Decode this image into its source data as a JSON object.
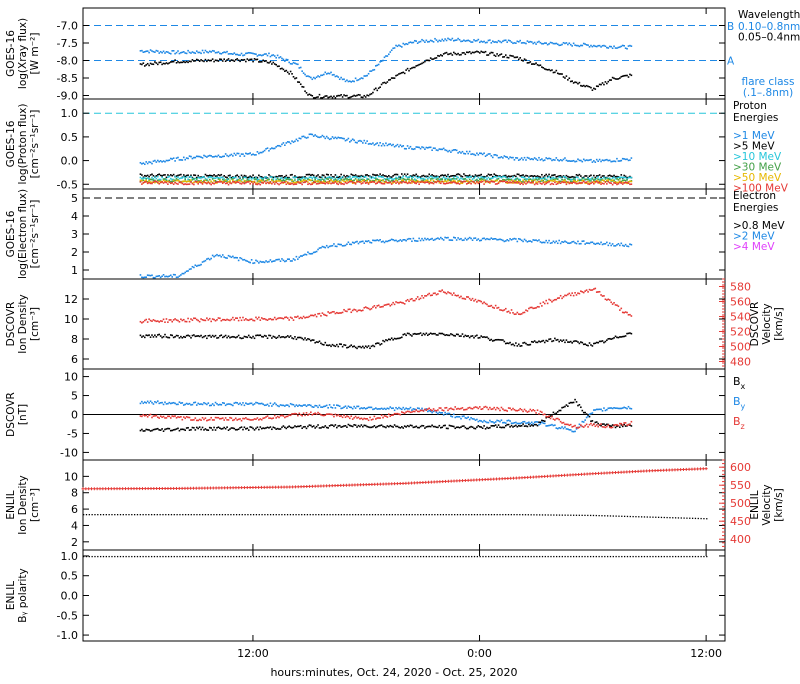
{
  "figure": {
    "xlabel": "hours:minutes, Oct. 24, 2020 - Oct. 25, 2020",
    "x_tick_labels": [
      "12:00",
      "0:00",
      "12:00"
    ]
  },
  "chart_data": [
    {
      "type": "scatter",
      "id": "xray",
      "ylabel_lines": [
        "GOES-16",
        "log(Xray flux)",
        "[W m⁻²]"
      ],
      "ylim": [
        -9.1,
        -6.5
      ],
      "y_ticks": [
        -7.0,
        -7.5,
        -8.0,
        -8.5,
        -9.0
      ],
      "y_tick_labels": [
        "-7.0",
        "-7.5",
        "-8.0",
        "-8.5",
        "-9.0"
      ],
      "legend_title": "Wavelength",
      "legend": [
        {
          "label": "0.10–0.8nm",
          "color": "#1e88e5",
          "side_label": "B"
        },
        {
          "label": "0.05–0.4nm",
          "color": "#000000"
        }
      ],
      "side_label_A": "A",
      "note_lines": [
        "flare class",
        "(.1–.8nm)"
      ],
      "note_color": "#1e88e5",
      "reference_lines": [
        {
          "y": -7.0,
          "color": "#1e88e5"
        },
        {
          "y": -8.0,
          "color": "#1e88e5"
        }
      ],
      "series": [
        {
          "name": "0.10–0.8nm",
          "color": "#1e88e5",
          "x": [
            6,
            8,
            10,
            11,
            12,
            13,
            14.3,
            15,
            16,
            17,
            18,
            18.8,
            19.5,
            20.5,
            21.5,
            22.5,
            24,
            26,
            28,
            30,
            31,
            32
          ],
          "y": [
            -7.7,
            -7.75,
            -7.72,
            -7.8,
            -7.8,
            -7.82,
            -8.1,
            -8.5,
            -8.3,
            -8.6,
            -8.4,
            -8.0,
            -7.6,
            -7.45,
            -7.4,
            -7.38,
            -7.42,
            -7.45,
            -7.5,
            -7.55,
            -7.58,
            -7.6
          ]
        },
        {
          "name": "0.05–0.4nm",
          "color": "#000000",
          "x": [
            6,
            8,
            10,
            11,
            12,
            13,
            14,
            15,
            17,
            18,
            19,
            20,
            21,
            22,
            24,
            26,
            28,
            29,
            30,
            31,
            32
          ],
          "y": [
            -8.1,
            -8.0,
            -7.97,
            -7.95,
            -7.97,
            -8.05,
            -8.35,
            -9.0,
            -9.0,
            -9.0,
            -8.6,
            -8.3,
            -8.0,
            -7.8,
            -7.75,
            -7.9,
            -8.3,
            -8.6,
            -8.8,
            -8.5,
            -8.4
          ]
        }
      ]
    },
    {
      "type": "scatter",
      "id": "proton",
      "ylabel_lines": [
        "GOES-16",
        "log(Proton flux)",
        "[cm⁻²s⁻¹sr⁻¹]"
      ],
      "ylim": [
        -0.6,
        1.3
      ],
      "y_ticks": [
        1.0,
        0.5,
        0.0,
        -0.5
      ],
      "y_tick_labels": [
        "1.0",
        "0.5",
        "0.0",
        "-0.5"
      ],
      "legend_title_lines": [
        "Proton",
        "Energies"
      ],
      "legend": [
        {
          "label": ">1 MeV",
          "color": "#1e88e5"
        },
        {
          "label": ">5 MeV",
          "color": "#000000"
        },
        {
          "label": ">10 MeV",
          "color": "#26c6da"
        },
        {
          "label": ">30 MeV",
          "color": "#43a047"
        },
        {
          "label": ">50 MeV",
          "color": "#e6b800"
        },
        {
          "label": ">100 MeV",
          "color": "#e53935"
        }
      ],
      "reference_lines": [
        {
          "y": 1.0,
          "color": "#26c6da"
        }
      ],
      "series": [
        {
          "name": ">1 MeV",
          "color": "#1e88e5",
          "x": [
            6,
            9,
            12,
            15,
            18,
            20,
            22,
            24,
            26,
            28,
            30,
            32
          ],
          "y": [
            -0.05,
            0.1,
            0.15,
            0.55,
            0.4,
            0.3,
            0.25,
            0.15,
            0.05,
            0.05,
            0.0,
            0.05
          ]
        },
        {
          "name": ">5 MeV",
          "color": "#000000",
          "x": [
            6,
            12,
            18,
            24,
            32
          ],
          "y": [
            -0.3,
            -0.32,
            -0.3,
            -0.3,
            -0.32
          ]
        },
        {
          "name": ">10 MeV",
          "color": "#26c6da",
          "x": [
            6,
            12,
            18,
            24,
            32
          ],
          "y": [
            -0.35,
            -0.36,
            -0.35,
            -0.35,
            -0.36
          ]
        },
        {
          "name": ">30 MeV",
          "color": "#43a047",
          "x": [
            6,
            12,
            18,
            24,
            32
          ],
          "y": [
            -0.4,
            -0.4,
            -0.4,
            -0.4,
            -0.4
          ]
        },
        {
          "name": ">50 MeV",
          "color": "#e6b800",
          "x": [
            6,
            12,
            18,
            24,
            32
          ],
          "y": [
            -0.43,
            -0.43,
            -0.43,
            -0.43,
            -0.43
          ]
        },
        {
          "name": ">100 MeV",
          "color": "#e53935",
          "x": [
            6,
            12,
            18,
            24,
            32
          ],
          "y": [
            -0.45,
            -0.46,
            -0.45,
            -0.45,
            -0.46
          ]
        }
      ]
    },
    {
      "type": "scatter",
      "id": "electron",
      "ylabel_lines": [
        "GOES-16",
        "log(Electron flux)",
        "[cm⁻²s⁻¹sr⁻¹]"
      ],
      "ylim": [
        0.5,
        5.5
      ],
      "y_ticks": [
        5,
        4,
        3,
        2,
        1
      ],
      "y_tick_labels": [
        "5",
        "4",
        "3",
        "2",
        "1"
      ],
      "legend_title_lines": [
        "Electron",
        "Energies"
      ],
      "legend": [
        {
          "label": ">0.8 MeV",
          "color": "#000000"
        },
        {
          "label": ">2 MeV",
          "color": "#1e88e5"
        },
        {
          "label": ">4 MeV",
          "color": "#e040fb"
        }
      ],
      "reference_lines": [
        {
          "y": 5.0,
          "color": "#000000"
        }
      ],
      "series": [
        {
          "name": ">2 MeV",
          "color": "#1e88e5",
          "x": [
            6,
            8,
            10,
            12,
            14,
            16,
            18,
            20,
            22,
            24,
            26,
            28,
            30,
            32
          ],
          "y": [
            0.7,
            0.7,
            1.9,
            1.5,
            1.6,
            2.4,
            2.6,
            2.7,
            2.8,
            2.75,
            2.7,
            2.6,
            2.55,
            2.4
          ]
        }
      ]
    },
    {
      "type": "scatter",
      "id": "dscovr_density",
      "ylabel_lines": [
        "DSCOVR",
        "Ion Density",
        "[cm⁻³]"
      ],
      "ylim": [
        5,
        14
      ],
      "y_ticks": [
        12,
        10,
        8,
        6
      ],
      "y_tick_labels": [
        "12",
        "10",
        "8",
        "6"
      ],
      "right_axis": {
        "label_lines": [
          "DSCOVR",
          "Velocity",
          "[km/s]"
        ],
        "ylim": [
          470,
          590
        ],
        "ticks": [
          480,
          500,
          520,
          540,
          560,
          580
        ],
        "tick_labels": [
          "480",
          "500",
          "520",
          "540",
          "560",
          "580"
        ],
        "color": "#e53935"
      },
      "series": [
        {
          "name": "",
          "color": "#000000",
          "x": [
            6,
            10,
            14,
            16,
            18,
            20,
            22,
            24,
            26,
            28,
            30,
            32
          ],
          "y": [
            8.4,
            8.3,
            8.3,
            7.5,
            7.2,
            8.5,
            8.6,
            8.3,
            7.5,
            8.0,
            7.5,
            8.7
          ]
        },
        {
          "name": "",
          "color": "#e53935",
          "x": [
            6,
            10,
            14,
            16,
            18,
            20,
            22,
            24,
            26,
            28,
            30,
            32
          ],
          "y": [
            535,
            537,
            538,
            545,
            552,
            560,
            575,
            560,
            545,
            565,
            578,
            540
          ],
          "axis": "right"
        }
      ]
    },
    {
      "type": "scatter",
      "id": "dscovr_b",
      "ylabel_lines": [
        "DSCOVR",
        "[nT]"
      ],
      "ylim": [
        -12,
        12
      ],
      "y_ticks": [
        10,
        5,
        0,
        -5,
        -10
      ],
      "y_tick_labels": [
        "10",
        "5",
        "0",
        "-5",
        "-10"
      ],
      "legend_items": [
        {
          "label": "Bx",
          "base": "B",
          "sub": "x",
          "color": "#000000"
        },
        {
          "label": "By",
          "base": "B",
          "sub": "y",
          "color": "#1e88e5"
        },
        {
          "label": "Bz",
          "base": "B",
          "sub": "z",
          "color": "#e53935"
        }
      ],
      "series": [
        {
          "name": "Bx",
          "color": "#000000",
          "x": [
            6,
            9,
            12,
            15,
            18,
            21,
            24,
            27,
            29,
            30,
            31,
            32
          ],
          "y": [
            -4,
            -3.5,
            -3.5,
            -3.0,
            -2.8,
            -3.0,
            -3.2,
            -2.5,
            4.0,
            -2.0,
            -3.0,
            -2.5
          ]
        },
        {
          "name": "By",
          "color": "#1e88e5",
          "x": [
            6,
            9,
            12,
            15,
            18,
            21,
            24,
            27,
            29,
            30,
            31,
            32
          ],
          "y": [
            3.5,
            3.0,
            3.0,
            2.5,
            2.0,
            1.5,
            -1.5,
            -2.0,
            -4.0,
            1.0,
            2.0,
            2.0
          ]
        },
        {
          "name": "Bz",
          "color": "#e53935",
          "x": [
            6,
            9,
            12,
            15,
            18,
            21,
            24,
            27,
            29,
            30,
            31,
            32
          ],
          "y": [
            0.0,
            -1.0,
            -1.0,
            0.5,
            -1.0,
            1.5,
            2.0,
            1.0,
            -3.0,
            -2.5,
            -3.0,
            -2.0
          ]
        }
      ]
    },
    {
      "type": "line",
      "id": "enlil_density",
      "ylabel_lines": [
        "ENLIL",
        "Ion Density",
        "[cm⁻³]"
      ],
      "ylim": [
        1,
        12
      ],
      "y_ticks": [
        10,
        8,
        6,
        4,
        2
      ],
      "y_tick_labels": [
        "10",
        "8",
        "6",
        "4",
        "2"
      ],
      "right_axis": {
        "label_lines": [
          "ENLIL",
          "Velocity",
          "[km/s]"
        ],
        "ylim": [
          370,
          620
        ],
        "ticks": [
          400,
          450,
          500,
          550,
          600
        ],
        "tick_labels": [
          "400",
          "450",
          "500",
          "550",
          "600"
        ],
        "color": "#e53935"
      },
      "series": [
        {
          "name": "",
          "color": "#000000",
          "x": [
            3,
            8,
            14,
            20,
            26,
            30,
            33,
            36
          ],
          "y": [
            5.4,
            5.4,
            5.4,
            5.4,
            5.4,
            5.3,
            5.1,
            4.9
          ]
        },
        {
          "name": "",
          "color": "#e53935",
          "x": [
            3,
            8,
            14,
            20,
            26,
            30,
            33,
            36
          ],
          "y": [
            540,
            541,
            545,
            555,
            570,
            582,
            590,
            596
          ],
          "axis": "right"
        }
      ]
    },
    {
      "type": "line",
      "id": "enlil_polarity",
      "ylabel_lines": [
        "ENLIL",
        "Bᵧ polarity"
      ],
      "ylim": [
        -1.15,
        1.15
      ],
      "y_ticks": [
        1.0,
        0.5,
        0.0,
        -0.5,
        -1.0
      ],
      "y_tick_labels": [
        "1.0",
        "0.5",
        "0.0",
        "-0.5",
        "-1.0"
      ],
      "series": [
        {
          "name": "",
          "color": "#000000",
          "x": [
            3,
            36
          ],
          "y": [
            1.0,
            1.0
          ]
        }
      ]
    }
  ],
  "x_axis": {
    "xlim": [
      3,
      37
    ],
    "ticks": [
      12,
      24,
      36
    ]
  }
}
